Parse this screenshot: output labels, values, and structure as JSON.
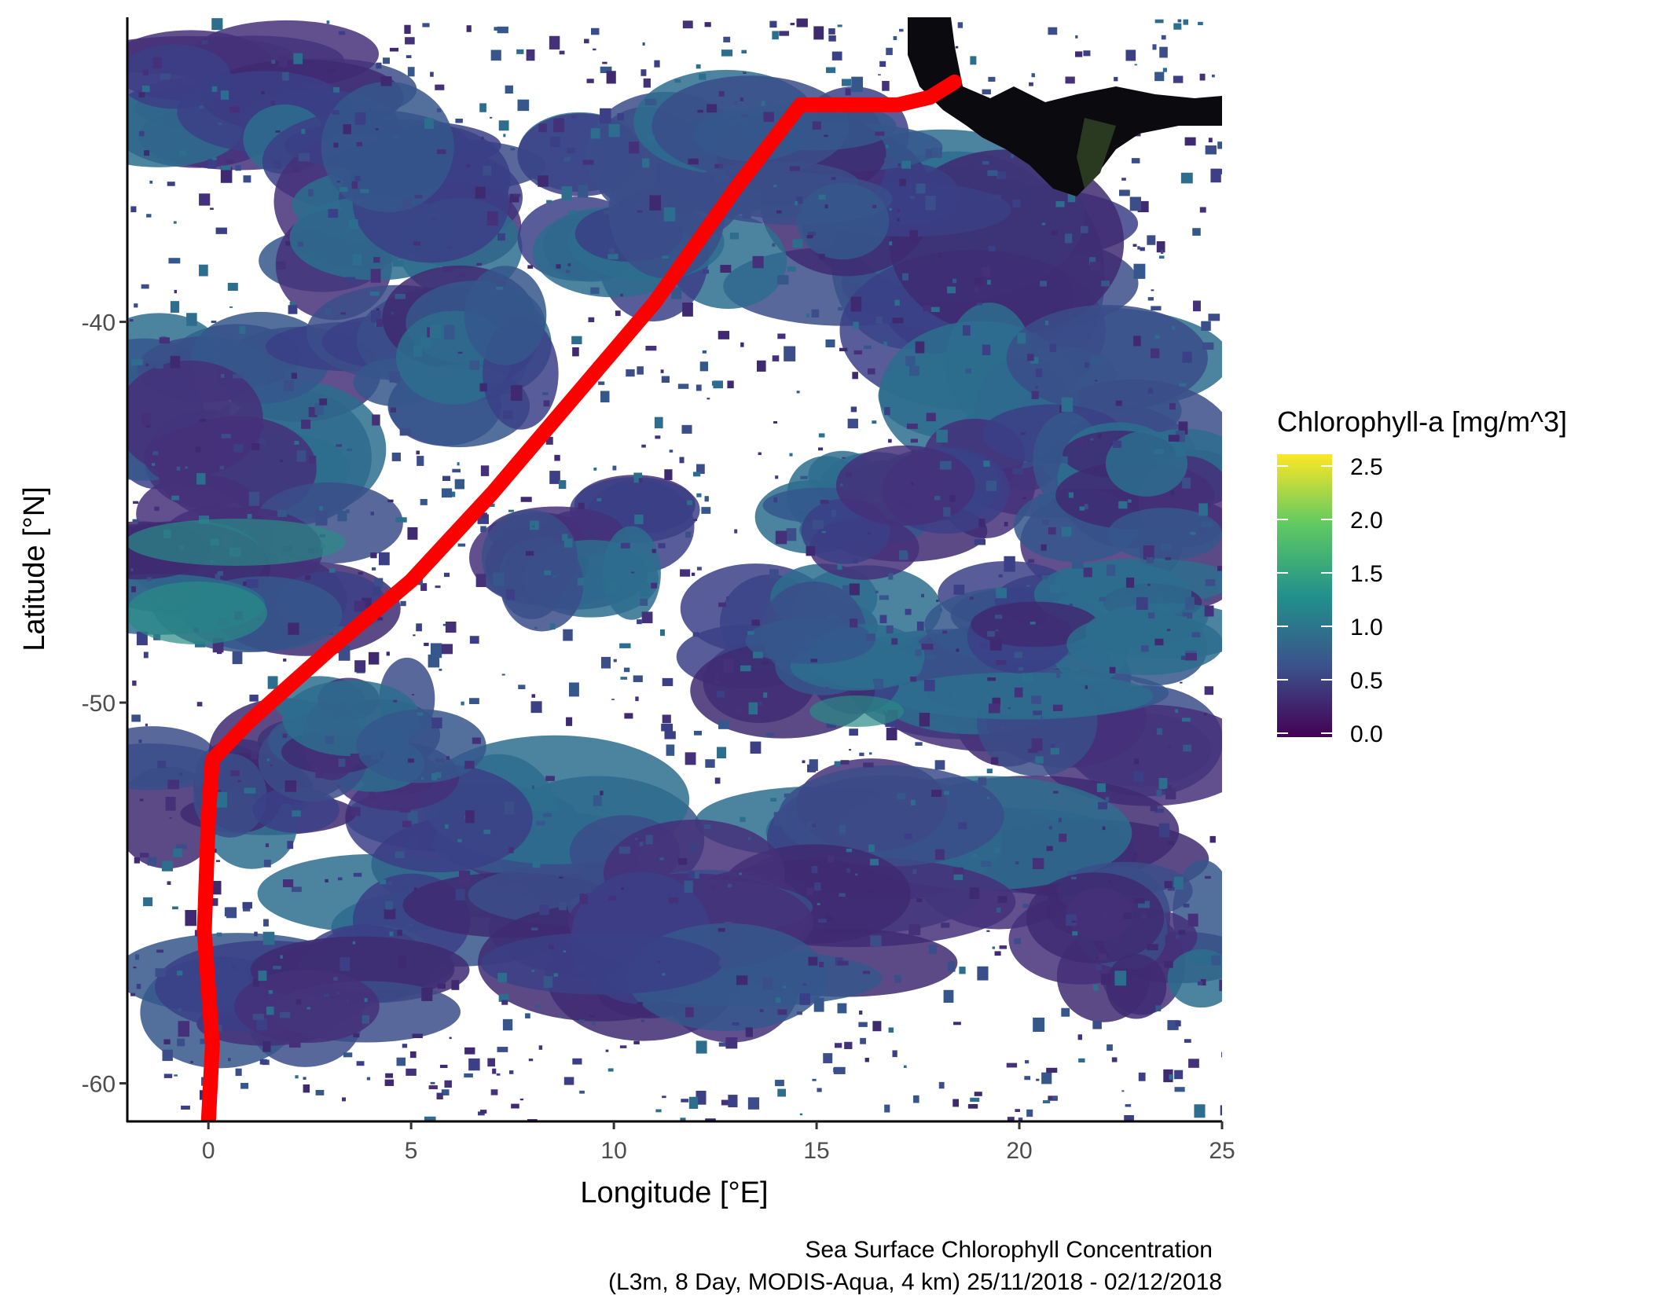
{
  "chart_data": {
    "type": "map",
    "xlabel": "Longitude [°E]",
    "ylabel": "Latitude [°N]",
    "xlim": [
      -2,
      25
    ],
    "ylim": [
      -61,
      -32
    ],
    "x_ticks": [
      0,
      5,
      10,
      15,
      20,
      25
    ],
    "y_ticks": [
      -40,
      -50,
      -60
    ],
    "legend": {
      "title": "Chlorophyll-a [mg/m^3]",
      "placement": "right",
      "breaks": [
        "2.5",
        "2.0",
        "1.5",
        "1.0",
        "0.5",
        "0.0"
      ],
      "range": [
        0.0,
        2.5
      ],
      "colors": [
        "#440154",
        "#3b528b",
        "#21918c",
        "#5ec962",
        "#fde725"
      ]
    },
    "cruise_track": {
      "color": "#ff0000",
      "points": [
        [
          0,
          -61
        ],
        [
          0.1,
          -59
        ],
        [
          -0.1,
          -56
        ],
        [
          0,
          -53
        ],
        [
          0.1,
          -51.5
        ],
        [
          1,
          -50.5
        ],
        [
          3,
          -48.6
        ],
        [
          5,
          -46.8
        ],
        [
          7,
          -44.5
        ],
        [
          9,
          -42
        ],
        [
          11,
          -39.5
        ],
        [
          13,
          -36.5
        ],
        [
          14.6,
          -34.3
        ],
        [
          17,
          -34.3
        ],
        [
          17.8,
          -34.1
        ],
        [
          18.4,
          -33.7
        ]
      ]
    },
    "caption": [
      "Sea Surface Chlorophyll Concentration",
      "(L3m, 8 Day, MODIS-Aqua, 4 km) 25/11/2018 - 02/12/2018"
    ]
  }
}
